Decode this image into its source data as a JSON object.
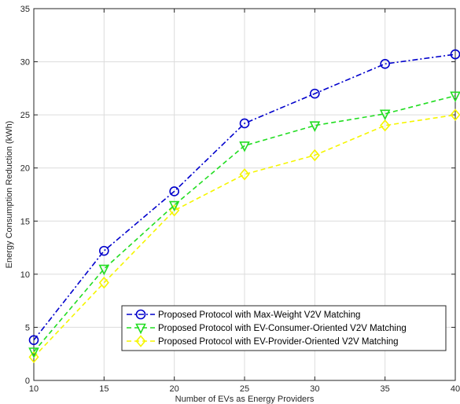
{
  "chart_data": {
    "type": "line",
    "xlabel": "Number of EVs as Energy Providers",
    "ylabel": "Energy Consumption Reduction (kWh)",
    "x": [
      10,
      15,
      20,
      25,
      30,
      35,
      40
    ],
    "xlim": [
      10,
      40
    ],
    "ylim": [
      0,
      35
    ],
    "xticks": [
      10,
      15,
      20,
      25,
      30,
      35,
      40
    ],
    "yticks": [
      0,
      5,
      10,
      15,
      20,
      25,
      30,
      35
    ],
    "grid": true,
    "legend_position": "bottom-right",
    "series": [
      {
        "name": "Proposed Protocol with Max-Weight V2V Matching",
        "values": [
          3.8,
          12.2,
          17.8,
          24.2,
          27.0,
          29.8,
          30.7
        ],
        "color": "#0000cc",
        "marker": "circle",
        "dash": "dash-dot"
      },
      {
        "name": "Proposed Protocol with EV-Consumer-Oriented V2V Matching",
        "values": [
          2.7,
          10.5,
          16.5,
          22.1,
          24.0,
          25.1,
          26.8
        ],
        "color": "#22dd22",
        "marker": "triangle-down",
        "dash": "dashed"
      },
      {
        "name": "Proposed Protocol with EV-Provider-Oriented V2V Matching",
        "values": [
          2.2,
          9.2,
          16.0,
          19.4,
          21.2,
          24.0,
          25.0
        ],
        "color": "#f5f500",
        "marker": "diamond",
        "dash": "dashed"
      }
    ]
  }
}
